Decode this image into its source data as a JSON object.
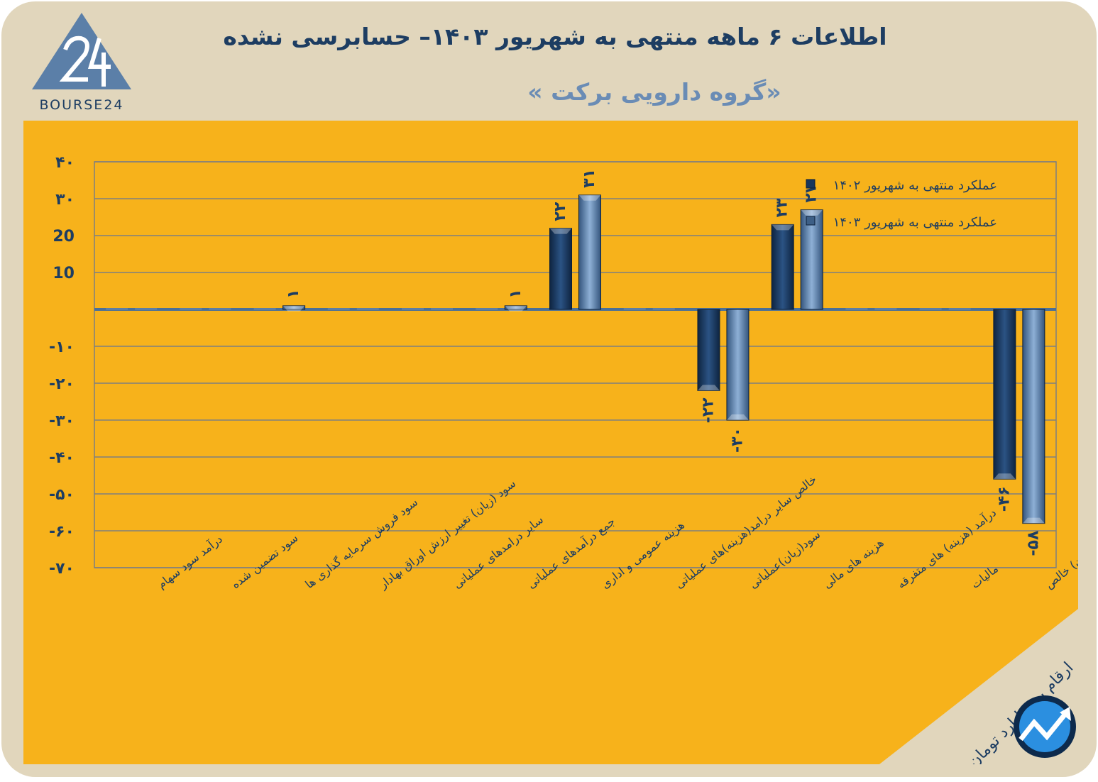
{
  "header": {
    "title": "اطلاعات ۶ ماهه منتهی به شهریور ۱۴۰۳– حسابرسی نشده",
    "subtitle": "«گروه دارویی برکت »"
  },
  "logo": {
    "text": "BOURSE24",
    "icon": "bourse24-logo-icon",
    "color": "#5b7fa8"
  },
  "footer": {
    "unit_note": "ارقام به میلیارد تومان",
    "icon": "chart-trend-icon"
  },
  "colors": {
    "frame": "#e1d6bc",
    "panel": "#f7b21b",
    "series_1402": "#17365d",
    "series_1403": "#5a7ea6",
    "title": "#1d3d62",
    "subtitle": "#6a8cb5"
  },
  "chart_data": {
    "type": "bar",
    "categories": [
      "درآمد سود سهام",
      "سود تضمین شده",
      "سود فروش سرمایه گذاری ها",
      "سود (زیان) تغییر ارزش اوراق بهادار",
      "سایر درامدهای عملیاتی",
      "جمع درآمدهای عملیاتی",
      "هزینه عمومی و اداری",
      "خالص سایر درامد(هزینه)های عملیاتی",
      "سود(زیان)عملیاتی",
      "هزینه های مالی",
      "درآمد (هزینه) های متفرقه",
      "مالیات",
      "سود(زیان) خالص"
    ],
    "series": [
      {
        "name": "عملکرد منتهی به شهریور ۱۴۰۲",
        "values": [
          0,
          0,
          0,
          0,
          0,
          0,
          22,
          0,
          -22,
          23,
          0,
          0,
          -46
        ]
      },
      {
        "name": "عملکرد منتهی به شهریور ۱۴۰۳",
        "values": [
          0,
          0,
          1,
          0,
          0,
          1,
          31,
          0,
          -30,
          27,
          0,
          0,
          -58
        ]
      }
    ],
    "data_labels": [
      [
        null,
        null,
        null,
        null,
        null,
        null,
        "۲۲",
        null,
        "-۲۲",
        "۲۳",
        null,
        null,
        "-۴۶"
      ],
      [
        null,
        null,
        "۱",
        null,
        null,
        "۱",
        "۳۱",
        null,
        "-۳۰",
        "۲۷",
        null,
        null,
        "-۵۸"
      ]
    ],
    "y_ticks": [
      40,
      30,
      20,
      10,
      -10,
      -20,
      -30,
      -40,
      -50,
      -60,
      -70
    ],
    "y_tick_labels": [
      "۴۰",
      "۳۰",
      "20",
      "10",
      "-۱۰",
      "-۲۰",
      "-۳۰",
      "-۴۰",
      "-۵۰",
      "-۶۰",
      "-۷۰"
    ],
    "ylim": [
      -70,
      40
    ],
    "grid": true,
    "legend_position": "top-right"
  }
}
